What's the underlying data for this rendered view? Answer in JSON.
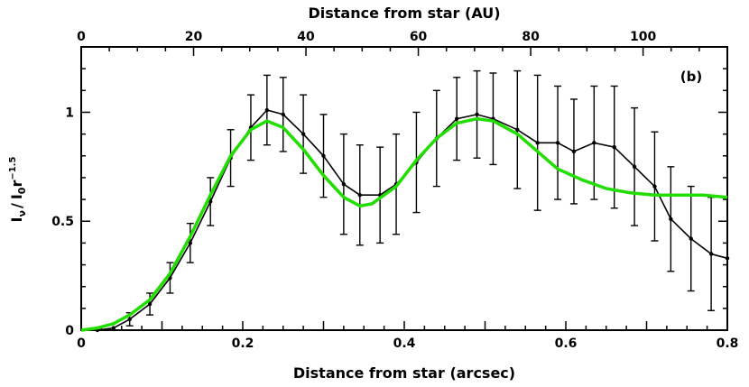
{
  "chart_data": {
    "type": "line",
    "panel_label": "(b)",
    "xlabel": "Distance from star (arcsec)",
    "x2label": "Distance from star (AU)",
    "ylabel_main": "I",
    "ylabel_sub": "ν",
    "ylabel_sep": "/",
    "ylabel_denom": "I",
    "ylabel_denom_sub": "0",
    "ylabel_r": "r",
    "ylabel_exp": "−1.5",
    "xlim": [
      0,
      0.8
    ],
    "ylim": [
      0,
      1.3
    ],
    "x2lim": [
      0,
      115
    ],
    "xticks": [
      0,
      0.2,
      0.4,
      0.6,
      0.8
    ],
    "xtick_labels": [
      "0",
      "0.2",
      "0.4",
      "0.6",
      "0.8"
    ],
    "yticks": [
      0,
      0.5,
      1
    ],
    "ytick_labels": [
      "0",
      "0.5",
      "1"
    ],
    "x2ticks": [
      0,
      20,
      40,
      60,
      80,
      100
    ],
    "x2tick_labels": [
      "0",
      "20",
      "40",
      "60",
      "80",
      "100"
    ],
    "grid": false,
    "series": [
      {
        "color": "#000000",
        "style": "line-with-errorbars",
        "x": [
          0.02,
          0.04,
          0.06,
          0.085,
          0.11,
          0.135,
          0.16,
          0.185,
          0.21,
          0.23,
          0.25,
          0.275,
          0.3,
          0.325,
          0.345,
          0.37,
          0.39,
          0.415,
          0.44,
          0.465,
          0.49,
          0.51,
          0.54,
          0.565,
          0.59,
          0.61,
          0.635,
          0.66,
          0.685,
          0.71,
          0.73,
          0.755,
          0.78,
          0.8
        ],
        "y": [
          0.0,
          0.01,
          0.05,
          0.12,
          0.24,
          0.4,
          0.59,
          0.79,
          0.93,
          1.01,
          0.99,
          0.9,
          0.8,
          0.67,
          0.62,
          0.62,
          0.67,
          0.77,
          0.88,
          0.97,
          0.99,
          0.97,
          0.92,
          0.86,
          0.86,
          0.82,
          0.86,
          0.84,
          0.75,
          0.66,
          0.51,
          0.42,
          0.35,
          0.33
        ],
        "yerr": [
          0,
          0,
          0.03,
          0.05,
          0.07,
          0.09,
          0.11,
          0.13,
          0.15,
          0.16,
          0.17,
          0.18,
          0.19,
          0.23,
          0.23,
          0.22,
          0.23,
          0.23,
          0.22,
          0.19,
          0.2,
          0.21,
          0.27,
          0.31,
          0.26,
          0.24,
          0.26,
          0.28,
          0.27,
          0.25,
          0.24,
          0.24,
          0.26,
          0
        ]
      },
      {
        "color": "#22dd00",
        "style": "line",
        "x": [
          0.0,
          0.02,
          0.04,
          0.06,
          0.085,
          0.11,
          0.135,
          0.16,
          0.185,
          0.21,
          0.23,
          0.25,
          0.275,
          0.3,
          0.325,
          0.345,
          0.36,
          0.39,
          0.415,
          0.44,
          0.465,
          0.49,
          0.51,
          0.54,
          0.565,
          0.59,
          0.62,
          0.65,
          0.68,
          0.71,
          0.74,
          0.77,
          0.8
        ],
        "y": [
          0.0,
          0.01,
          0.03,
          0.07,
          0.14,
          0.26,
          0.43,
          0.62,
          0.8,
          0.92,
          0.96,
          0.93,
          0.83,
          0.71,
          0.61,
          0.57,
          0.58,
          0.66,
          0.78,
          0.88,
          0.95,
          0.97,
          0.96,
          0.9,
          0.82,
          0.74,
          0.69,
          0.65,
          0.63,
          0.62,
          0.62,
          0.62,
          0.61
        ]
      }
    ]
  }
}
